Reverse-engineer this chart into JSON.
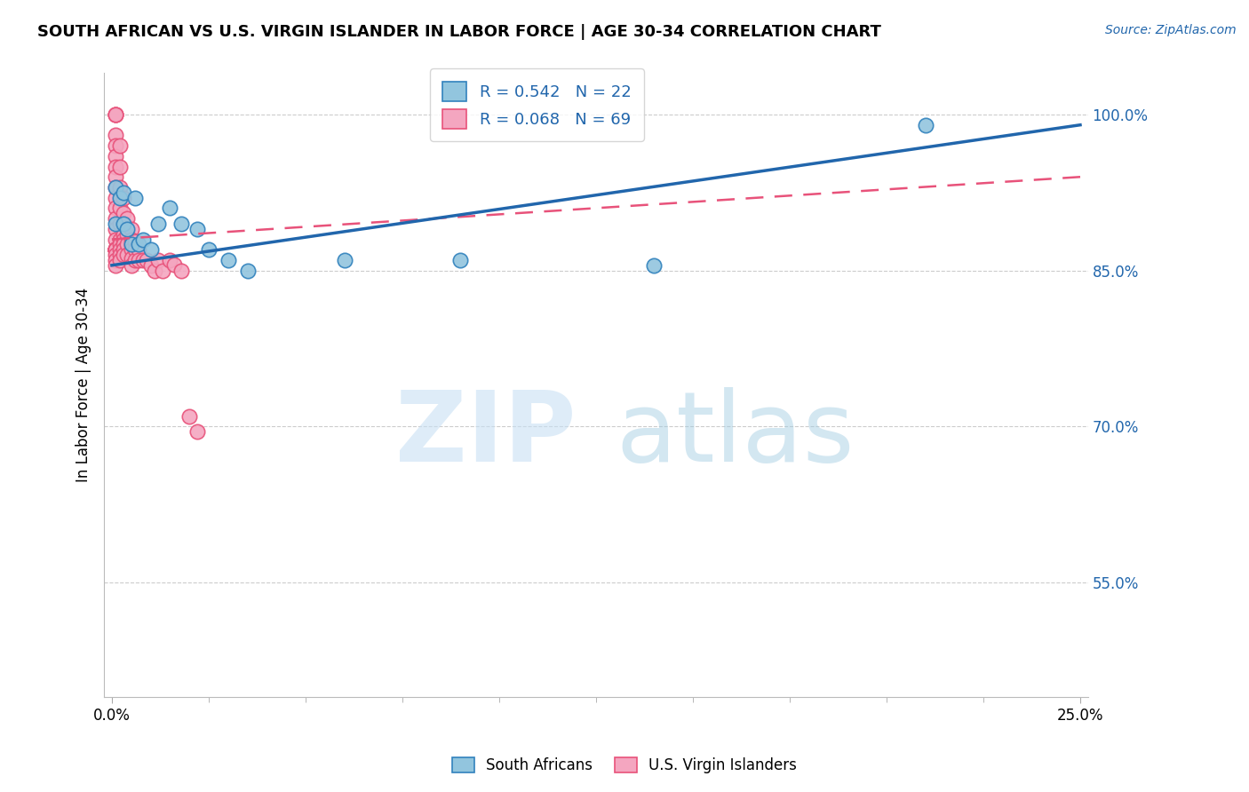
{
  "title": "SOUTH AFRICAN VS U.S. VIRGIN ISLANDER IN LABOR FORCE | AGE 30-34 CORRELATION CHART",
  "source": "Source: ZipAtlas.com",
  "ylabel": "In Labor Force | Age 30-34",
  "xmin": -0.002,
  "xmax": 0.252,
  "ymin": 0.44,
  "ymax": 1.04,
  "blue_R": 0.542,
  "blue_N": 22,
  "pink_R": 0.068,
  "pink_N": 69,
  "blue_color": "#92c5de",
  "pink_color": "#f4a6c0",
  "blue_edge_color": "#3182bd",
  "pink_edge_color": "#e8527a",
  "blue_line_color": "#2166ac",
  "pink_line_color": "#e8527a",
  "watermark_zip_color": "#c8e0f4",
  "watermark_atlas_color": "#9ecae1",
  "ytick_vals": [
    0.55,
    0.7,
    0.85,
    1.0
  ],
  "ytick_labels": [
    "55.0%",
    "70.0%",
    "85.0%",
    "100.0%"
  ],
  "blue_scatter_x": [
    0.001,
    0.001,
    0.002,
    0.003,
    0.003,
    0.004,
    0.005,
    0.006,
    0.007,
    0.008,
    0.01,
    0.012,
    0.015,
    0.018,
    0.022,
    0.025,
    0.03,
    0.035,
    0.06,
    0.09,
    0.14,
    0.21
  ],
  "blue_scatter_y": [
    0.895,
    0.93,
    0.92,
    0.925,
    0.895,
    0.89,
    0.875,
    0.92,
    0.875,
    0.88,
    0.87,
    0.895,
    0.91,
    0.895,
    0.89,
    0.87,
    0.86,
    0.85,
    0.86,
    0.86,
    0.855,
    0.99
  ],
  "pink_scatter_x": [
    0.001,
    0.001,
    0.001,
    0.001,
    0.001,
    0.001,
    0.001,
    0.001,
    0.001,
    0.001,
    0.001,
    0.001,
    0.001,
    0.001,
    0.001,
    0.001,
    0.001,
    0.001,
    0.001,
    0.001,
    0.001,
    0.001,
    0.001,
    0.001,
    0.001,
    0.002,
    0.002,
    0.002,
    0.002,
    0.002,
    0.002,
    0.002,
    0.002,
    0.002,
    0.002,
    0.003,
    0.003,
    0.003,
    0.003,
    0.003,
    0.003,
    0.003,
    0.003,
    0.004,
    0.004,
    0.004,
    0.004,
    0.005,
    0.005,
    0.005,
    0.005,
    0.005,
    0.005,
    0.006,
    0.006,
    0.006,
    0.007,
    0.007,
    0.008,
    0.009,
    0.01,
    0.011,
    0.012,
    0.013,
    0.015,
    0.016,
    0.018,
    0.02,
    0.022
  ],
  "pink_scatter_y": [
    1.0,
    1.0,
    1.0,
    0.98,
    0.97,
    0.96,
    0.95,
    0.94,
    0.93,
    0.92,
    0.91,
    0.9,
    0.89,
    0.88,
    0.87,
    0.87,
    0.87,
    0.87,
    0.87,
    0.87,
    0.87,
    0.87,
    0.865,
    0.86,
    0.855,
    0.97,
    0.95,
    0.93,
    0.91,
    0.895,
    0.88,
    0.875,
    0.87,
    0.865,
    0.86,
    0.92,
    0.905,
    0.895,
    0.885,
    0.88,
    0.875,
    0.87,
    0.865,
    0.9,
    0.885,
    0.875,
    0.865,
    0.89,
    0.88,
    0.875,
    0.87,
    0.862,
    0.855,
    0.878,
    0.87,
    0.86,
    0.87,
    0.86,
    0.86,
    0.86,
    0.855,
    0.85,
    0.86,
    0.85,
    0.86,
    0.856,
    0.85,
    0.71,
    0.695
  ],
  "blue_trend_x0": 0.0,
  "blue_trend_y0": 0.855,
  "blue_trend_x1": 0.25,
  "blue_trend_y1": 0.99,
  "pink_trend_x0": 0.0,
  "pink_trend_y0": 0.88,
  "pink_trend_x1": 0.25,
  "pink_trend_y1": 0.94
}
